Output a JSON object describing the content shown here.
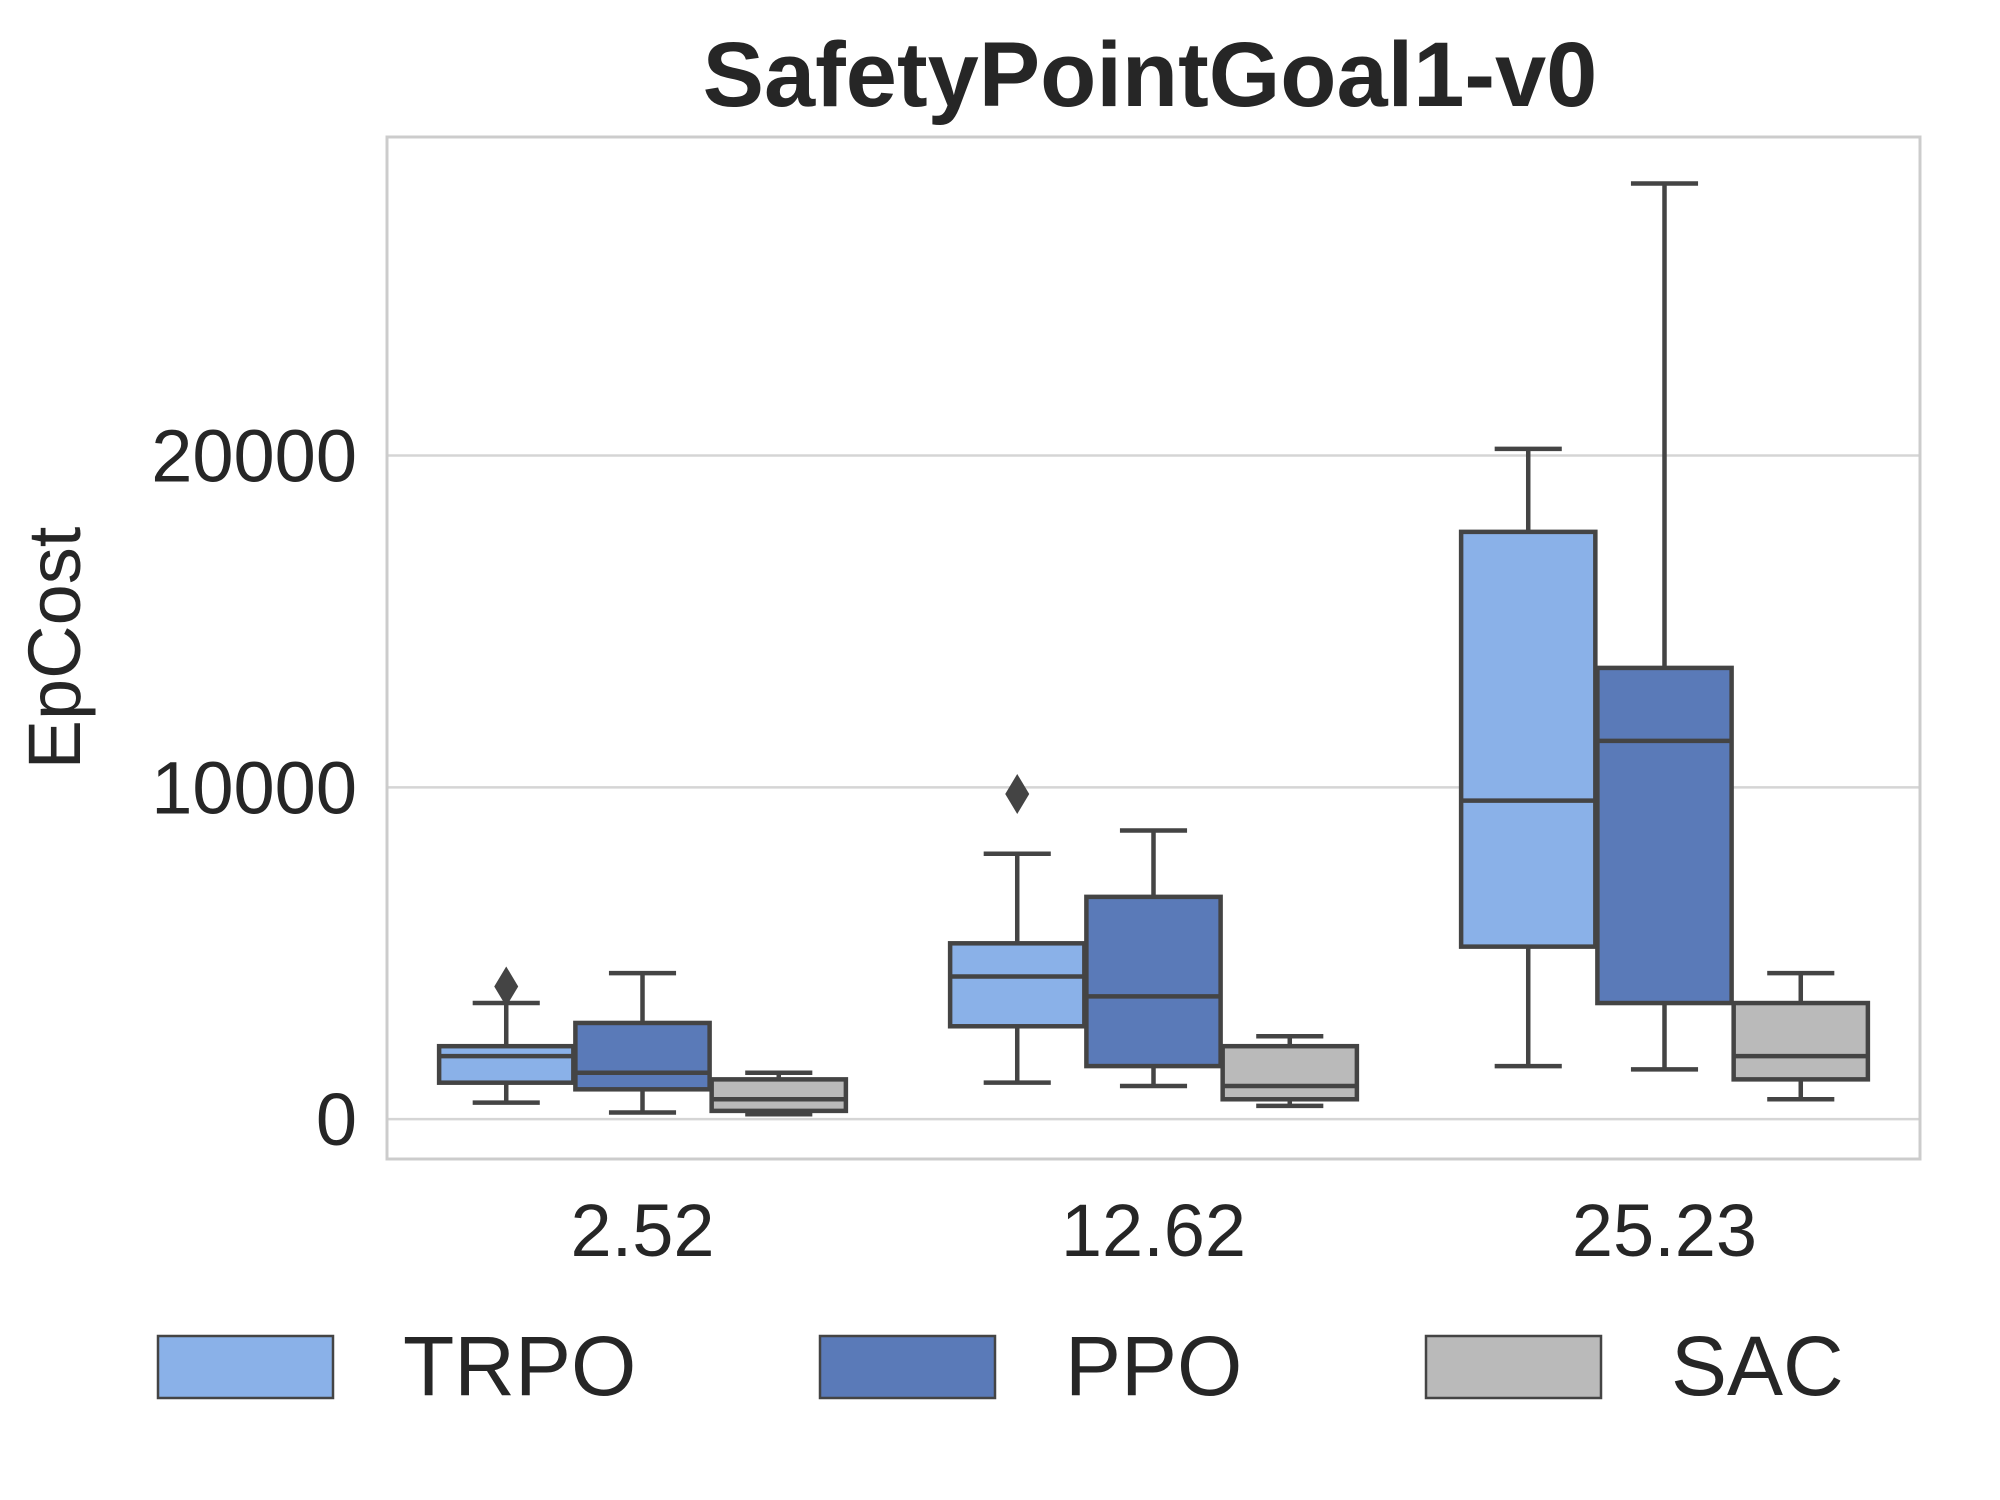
{
  "chart_data": {
    "type": "box",
    "title": "SafetyPointGoal1-v0",
    "xlabel": "",
    "ylabel": "EpCost",
    "ylim": [
      -1200,
      29600
    ],
    "yticks": [
      0,
      10000,
      20000
    ],
    "ytick_labels": [
      "0",
      "10000",
      "20000"
    ],
    "categories": [
      "2.52",
      "12.62",
      "25.23"
    ],
    "grid": "horizontal",
    "legend_position": "bottom",
    "series": [
      {
        "name": "TRPO",
        "color": "#8ab1e8",
        "boxes": [
          {
            "whisker_low": 500,
            "q1": 1100,
            "median": 1900,
            "q3": 2200,
            "whisker_high": 3500,
            "outliers": [
              4000
            ]
          },
          {
            "whisker_low": 1100,
            "q1": 2800,
            "median": 4300,
            "q3": 5300,
            "whisker_high": 8000,
            "outliers": [
              9800
            ]
          },
          {
            "whisker_low": 1600,
            "q1": 5200,
            "median": 9600,
            "q3": 17700,
            "whisker_high": 20200,
            "outliers": []
          }
        ]
      },
      {
        "name": "PPO",
        "color": "#5a7ab8",
        "boxes": [
          {
            "whisker_low": 200,
            "q1": 900,
            "median": 1400,
            "q3": 2900,
            "whisker_high": 4400,
            "outliers": []
          },
          {
            "whisker_low": 1000,
            "q1": 1600,
            "median": 3700,
            "q3": 6700,
            "whisker_high": 8700,
            "outliers": []
          },
          {
            "whisker_low": 1500,
            "q1": 3500,
            "median": 11400,
            "q3": 13600,
            "whisker_high": 28200,
            "outliers": []
          }
        ]
      },
      {
        "name": "SAC",
        "color": "#bababa",
        "boxes": [
          {
            "whisker_low": 150,
            "q1": 250,
            "median": 600,
            "q3": 1200,
            "whisker_high": 1400,
            "outliers": []
          },
          {
            "whisker_low": 400,
            "q1": 600,
            "median": 1000,
            "q3": 2200,
            "whisker_high": 2500,
            "outliers": []
          },
          {
            "whisker_low": 600,
            "q1": 1200,
            "median": 1900,
            "q3": 3500,
            "whisker_high": 4400,
            "outliers": []
          }
        ]
      }
    ]
  }
}
